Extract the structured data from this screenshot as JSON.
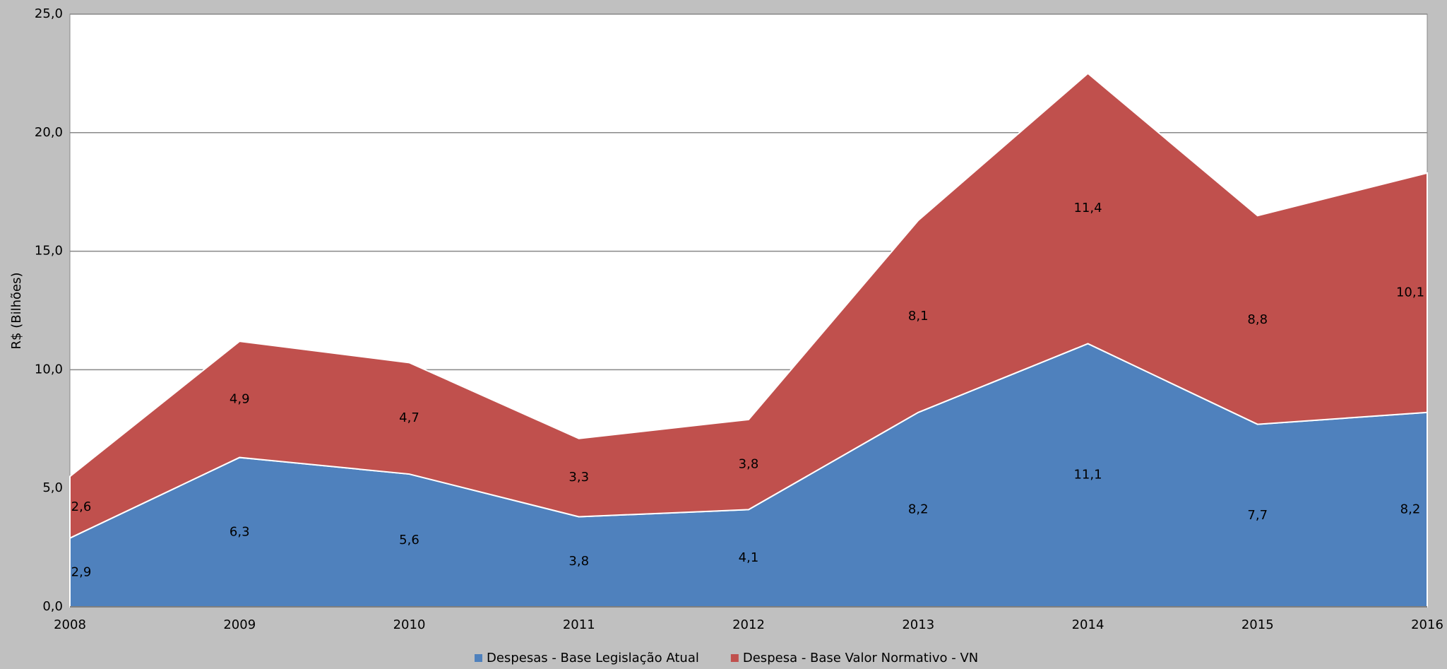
{
  "chart_data": {
    "type": "stacked_area",
    "y_label": "R$ (Bilhões)",
    "categories": [
      "2008",
      "2009",
      "2010",
      "2011",
      "2012",
      "2013",
      "2014",
      "2015",
      "2016"
    ],
    "series": [
      {
        "name": "Despesas - Base Legislação Atual",
        "color": "#4f81bd",
        "values": [
          2.9,
          6.3,
          5.6,
          3.8,
          4.1,
          8.2,
          11.1,
          7.7,
          8.2
        ],
        "value_labels": [
          "2,9",
          "6,3",
          "5,6",
          "3,8",
          "4,1",
          "8,2",
          "11,1",
          "7,7",
          "8,2"
        ]
      },
      {
        "name": "Despesa - Base Valor Normativo - VN",
        "color": "#c0504d",
        "values": [
          2.6,
          4.9,
          4.7,
          3.3,
          3.8,
          8.1,
          11.4,
          8.8,
          10.1
        ],
        "value_labels": [
          "2,6",
          "4,9",
          "4,7",
          "3,3",
          "3,8",
          "8,1",
          "11,4",
          "8,8",
          "10,1"
        ]
      }
    ],
    "ylim": [
      0,
      25
    ],
    "yticks": [
      {
        "value": 0,
        "label": "0,0"
      },
      {
        "value": 5,
        "label": "5,0"
      },
      {
        "value": 10,
        "label": "10,0"
      },
      {
        "value": 15,
        "label": "15,0"
      },
      {
        "value": 20,
        "label": "20,0"
      },
      {
        "value": 25,
        "label": "25,0"
      }
    ],
    "grid": true,
    "legend": "bottom"
  }
}
